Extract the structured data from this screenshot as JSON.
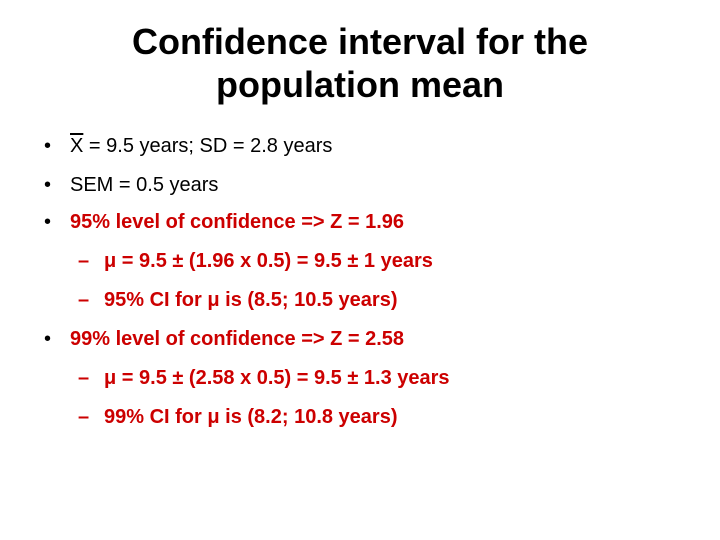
{
  "title": {
    "line1": "Confidence interval for the",
    "line2": "population mean"
  },
  "bullets": {
    "b1": {
      "marker": "•",
      "symbol": "X",
      "text": " = 9.5 years; SD = 2.8 years"
    },
    "b2": {
      "marker": "•",
      "text": "SEM = 0.5 years"
    },
    "b3": {
      "marker": "•",
      "text": "95% level of confidence => Z = 1.96"
    },
    "b3a": {
      "marker": "–",
      "text": "μ = 9.5 ± (1.96 x 0.5) = 9.5 ± 1 years"
    },
    "b3b": {
      "marker": "–",
      "text": "95% CI for μ is (8.5; 10.5 years)"
    },
    "b4": {
      "marker": "•",
      "text": "99% level of confidence => Z = 2.58"
    },
    "b4a": {
      "marker": "–",
      "text": "μ = 9.5 ± (2.58 x 0.5) = 9.5 ± 1.3 years"
    },
    "b4b": {
      "marker": "–",
      "text": "99% CI for μ is (8.2; 10.8 years)"
    }
  },
  "colors": {
    "accent": "#cc0000",
    "text": "#000000",
    "background": "#ffffff"
  }
}
